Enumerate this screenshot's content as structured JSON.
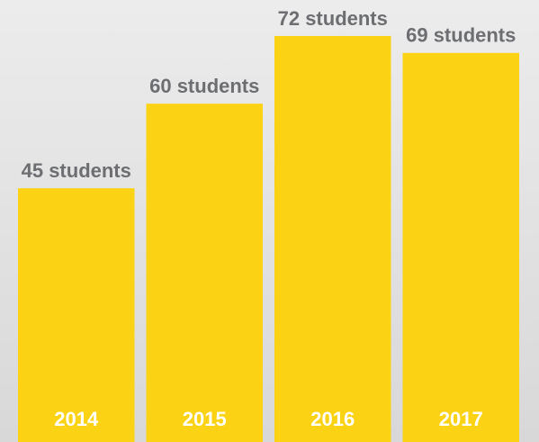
{
  "chart_data": {
    "type": "bar",
    "categories": [
      "2014",
      "2015",
      "2016",
      "2017"
    ],
    "values": [
      45,
      60,
      72,
      69
    ],
    "value_labels": [
      "45 students",
      "60 students",
      "72 students",
      "69 students"
    ],
    "color": "#fbd214"
  }
}
